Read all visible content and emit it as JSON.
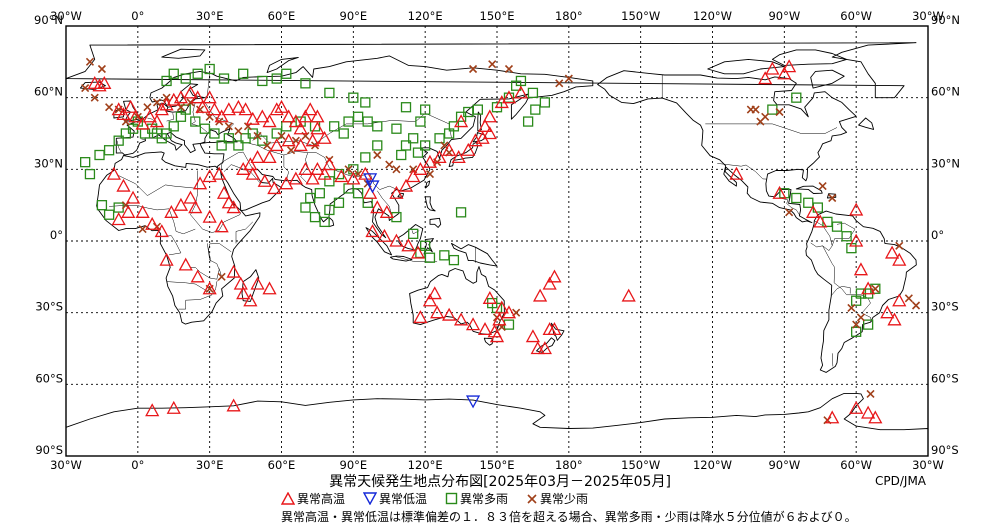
{
  "title": "異常天候発生地点分布図[2025年03月－2025年05月]",
  "credit": "CPD/JMA",
  "note": "異常高温・異常低温は標準偏差の１．８３倍を超える場合、異常多雨・少雨は降水５分位値が６および０。",
  "colors": {
    "high_temp": "#e8171a",
    "low_temp": "#1428d8",
    "heavy_rain": "#2a8a1a",
    "light_rain": "#a0401a"
  },
  "legend": [
    {
      "key": "high_temp",
      "label": "異常高温",
      "symbol": "triangle-up"
    },
    {
      "key": "low_temp",
      "label": "異常低温",
      "symbol": "triangle-down"
    },
    {
      "key": "heavy_rain",
      "label": "異常多雨",
      "symbol": "square"
    },
    {
      "key": "light_rain",
      "label": "異常少雨",
      "symbol": "cross"
    }
  ],
  "axes": {
    "top_labels": [
      "30°W",
      "0°",
      "30°E",
      "60°E",
      "90°E",
      "120°E",
      "150°E",
      "180°",
      "150°W",
      "120°W",
      "90°W",
      "60°W",
      "30°W"
    ],
    "bottom_labels": [
      "30°W",
      "0°",
      "30°E",
      "60°E",
      "90°E",
      "120°E",
      "150°E",
      "180°",
      "150°W",
      "120°W",
      "90°W",
      "60°W",
      "30°W"
    ],
    "left_labels": [
      "90°N",
      "60°N",
      "30°N",
      "0°",
      "30°S",
      "60°S",
      "90°S"
    ],
    "right_labels": [
      "90°N",
      "60°N",
      "30°N",
      "0°",
      "30°S",
      "60°S",
      "90°S"
    ],
    "lon_range_east": [
      -30,
      330
    ],
    "lat_range": [
      -90,
      90
    ]
  },
  "map_data": {
    "high_temp": [
      [
        -18,
        66
      ],
      [
        -16,
        65
      ],
      [
        -14,
        66
      ],
      [
        -8,
        55
      ],
      [
        -6,
        53
      ],
      [
        -3,
        56
      ],
      [
        -1,
        52
      ],
      [
        2,
        49
      ],
      [
        5,
        52
      ],
      [
        8,
        50
      ],
      [
        10,
        55
      ],
      [
        12,
        57
      ],
      [
        15,
        59
      ],
      [
        18,
        60
      ],
      [
        22,
        62
      ],
      [
        25,
        60
      ],
      [
        30,
        60
      ],
      [
        27,
        56
      ],
      [
        32,
        55
      ],
      [
        35,
        52
      ],
      [
        38,
        55
      ],
      [
        42,
        56
      ],
      [
        45,
        55
      ],
      [
        48,
        51
      ],
      [
        52,
        52
      ],
      [
        55,
        50
      ],
      [
        58,
        55
      ],
      [
        60,
        56
      ],
      [
        63,
        52
      ],
      [
        66,
        50
      ],
      [
        68,
        47
      ],
      [
        70,
        52
      ],
      [
        72,
        55
      ],
      [
        75,
        52
      ],
      [
        75,
        47
      ],
      [
        78,
        43
      ],
      [
        73,
        42
      ],
      [
        68,
        40
      ],
      [
        63,
        42
      ],
      [
        58,
        40
      ],
      [
        55,
        35
      ],
      [
        50,
        35
      ],
      [
        47,
        32
      ],
      [
        44,
        30
      ],
      [
        48,
        28
      ],
      [
        53,
        25
      ],
      [
        57,
        22
      ],
      [
        62,
        24
      ],
      [
        66,
        26
      ],
      [
        70,
        30
      ],
      [
        75,
        30
      ],
      [
        80,
        32
      ],
      [
        78,
        28
      ],
      [
        73,
        26
      ],
      [
        85,
        27
      ],
      [
        90,
        26
      ],
      [
        95,
        28
      ],
      [
        97,
        20
      ],
      [
        100,
        14
      ],
      [
        104,
        12
      ],
      [
        108,
        20
      ],
      [
        112,
        23
      ],
      [
        115,
        27
      ],
      [
        118,
        30
      ],
      [
        122,
        33
      ],
      [
        126,
        35
      ],
      [
        130,
        38
      ],
      [
        134,
        35
      ],
      [
        138,
        38
      ],
      [
        141,
        42
      ],
      [
        144,
        43
      ],
      [
        147,
        45
      ],
      [
        147,
        52
      ],
      [
        152,
        58
      ],
      [
        155,
        60
      ],
      [
        160,
        62
      ],
      [
        135,
        50
      ],
      [
        145,
        48
      ],
      [
        -10,
        28
      ],
      [
        -6,
        23
      ],
      [
        -2,
        18
      ],
      [
        -4,
        12
      ],
      [
        -8,
        9
      ],
      [
        2,
        12
      ],
      [
        6,
        7
      ],
      [
        10,
        4
      ],
      [
        14,
        12
      ],
      [
        18,
        15
      ],
      [
        22,
        18
      ],
      [
        26,
        24
      ],
      [
        30,
        27
      ],
      [
        34,
        28
      ],
      [
        36,
        20
      ],
      [
        38,
        16
      ],
      [
        40,
        14
      ],
      [
        24,
        14
      ],
      [
        30,
        10
      ],
      [
        35,
        6
      ],
      [
        12,
        -8
      ],
      [
        20,
        -10
      ],
      [
        25,
        -15
      ],
      [
        30,
        -20
      ],
      [
        40,
        -13
      ],
      [
        43,
        -18
      ],
      [
        44,
        -22
      ],
      [
        47,
        -25
      ],
      [
        50,
        -18
      ],
      [
        55,
        -20
      ],
      [
        98,
        4
      ],
      [
        103,
        2
      ],
      [
        108,
        0
      ],
      [
        113,
        -2
      ],
      [
        117,
        -5
      ],
      [
        124,
        -22
      ],
      [
        122,
        -25
      ],
      [
        125,
        -30
      ],
      [
        118,
        -32
      ],
      [
        130,
        -31
      ],
      [
        135,
        -33
      ],
      [
        140,
        -35
      ],
      [
        145,
        -37
      ],
      [
        149,
        -38
      ],
      [
        151,
        -33
      ],
      [
        147,
        -24
      ],
      [
        152,
        -28
      ],
      [
        155,
        -30
      ],
      [
        150,
        -40
      ],
      [
        165,
        -40
      ],
      [
        167,
        -45
      ],
      [
        170,
        -45
      ],
      [
        172,
        -37
      ],
      [
        174,
        -37
      ],
      [
        168,
        -23
      ],
      [
        172,
        -18
      ],
      [
        174,
        -15
      ],
      [
        205,
        -23
      ],
      [
        6,
        -71
      ],
      [
        15,
        -70
      ],
      [
        40,
        -69
      ],
      [
        300,
        -70
      ],
      [
        305,
        -72
      ],
      [
        308,
        -74
      ],
      [
        290,
        -74
      ],
      [
        262,
        68
      ],
      [
        265,
        72
      ],
      [
        270,
        70
      ],
      [
        272,
        73
      ],
      [
        250,
        28
      ],
      [
        268,
        20
      ],
      [
        282,
        12
      ],
      [
        285,
        8
      ],
      [
        300,
        13
      ],
      [
        315,
        -5
      ],
      [
        318,
        -8
      ],
      [
        300,
        0
      ],
      [
        302,
        -12
      ],
      [
        305,
        -20
      ],
      [
        313,
        -30
      ],
      [
        316,
        -33
      ],
      [
        318,
        -25
      ]
    ],
    "low_temp": [
      [
        97,
        26
      ],
      [
        98,
        23
      ],
      [
        140,
        -67
      ]
    ],
    "heavy_rain": [
      [
        -22,
        33
      ],
      [
        -20,
        28
      ],
      [
        -16,
        36
      ],
      [
        -12,
        38
      ],
      [
        -8,
        42
      ],
      [
        -5,
        45
      ],
      [
        -2,
        47
      ],
      [
        0,
        50
      ],
      [
        3,
        45
      ],
      [
        6,
        47
      ],
      [
        8,
        45
      ],
      [
        10,
        43
      ],
      [
        12,
        45
      ],
      [
        15,
        48
      ],
      [
        18,
        52
      ],
      [
        20,
        55
      ],
      [
        24,
        50
      ],
      [
        28,
        47
      ],
      [
        32,
        45
      ],
      [
        35,
        40
      ],
      [
        38,
        43
      ],
      [
        42,
        40
      ],
      [
        45,
        43
      ],
      [
        48,
        45
      ],
      [
        52,
        42
      ],
      [
        58,
        45
      ],
      [
        62,
        48
      ],
      [
        68,
        50
      ],
      [
        74,
        48
      ],
      [
        82,
        48
      ],
      [
        86,
        45
      ],
      [
        88,
        50
      ],
      [
        92,
        52
      ],
      [
        96,
        50
      ],
      [
        100,
        48
      ],
      [
        108,
        47
      ],
      [
        112,
        40
      ],
      [
        115,
        43
      ],
      [
        120,
        40
      ],
      [
        126,
        43
      ],
      [
        130,
        45
      ],
      [
        132,
        48
      ],
      [
        135,
        52
      ],
      [
        138,
        54
      ],
      [
        142,
        55
      ],
      [
        150,
        56
      ],
      [
        155,
        60
      ],
      [
        158,
        65
      ],
      [
        160,
        67
      ],
      [
        165,
        62
      ],
      [
        170,
        58
      ],
      [
        163,
        50
      ],
      [
        166,
        55
      ],
      [
        12,
        67
      ],
      [
        15,
        70
      ],
      [
        20,
        68
      ],
      [
        25,
        70
      ],
      [
        30,
        72
      ],
      [
        36,
        68
      ],
      [
        44,
        70
      ],
      [
        52,
        67
      ],
      [
        58,
        68
      ],
      [
        62,
        70
      ],
      [
        70,
        66
      ],
      [
        80,
        62
      ],
      [
        90,
        60
      ],
      [
        95,
        58
      ],
      [
        112,
        56
      ],
      [
        120,
        55
      ],
      [
        118,
        50
      ],
      [
        100,
        40
      ],
      [
        95,
        35
      ],
      [
        90,
        30
      ],
      [
        84,
        28
      ],
      [
        80,
        25
      ],
      [
        76,
        20
      ],
      [
        72,
        18
      ],
      [
        70,
        14
      ],
      [
        74,
        10
      ],
      [
        78,
        8
      ],
      [
        80,
        13
      ],
      [
        84,
        16
      ],
      [
        88,
        22
      ],
      [
        92,
        20
      ],
      [
        96,
        16
      ],
      [
        108,
        10
      ],
      [
        115,
        3
      ],
      [
        118,
        -5
      ],
      [
        120,
        -2
      ],
      [
        122,
        -7
      ],
      [
        128,
        -6
      ],
      [
        132,
        -8
      ],
      [
        135,
        12
      ],
      [
        110,
        36
      ],
      [
        117,
        37
      ],
      [
        -15,
        15
      ],
      [
        -12,
        11
      ],
      [
        -8,
        14
      ],
      [
        148,
        -26
      ],
      [
        150,
        -28
      ],
      [
        155,
        -35
      ],
      [
        284,
        14
      ],
      [
        288,
        8
      ],
      [
        292,
        6
      ],
      [
        296,
        2
      ],
      [
        298,
        -3
      ],
      [
        302,
        -22
      ],
      [
        305,
        -22
      ],
      [
        308,
        -20
      ],
      [
        300,
        -25
      ],
      [
        305,
        -35
      ],
      [
        300,
        -38
      ],
      [
        270,
        20
      ],
      [
        275,
        18
      ],
      [
        280,
        16
      ],
      [
        265,
        55
      ],
      [
        275,
        60
      ]
    ],
    "light_rain": [
      [
        -20,
        75
      ],
      [
        -15,
        72
      ],
      [
        -22,
        64
      ],
      [
        -18,
        60
      ],
      [
        -12,
        56
      ],
      [
        -8,
        55
      ],
      [
        -5,
        50
      ],
      [
        0,
        52
      ],
      [
        4,
        56
      ],
      [
        8,
        58
      ],
      [
        12,
        60
      ],
      [
        18,
        56
      ],
      [
        22,
        58
      ],
      [
        26,
        55
      ],
      [
        30,
        52
      ],
      [
        34,
        50
      ],
      [
        38,
        48
      ],
      [
        42,
        46
      ],
      [
        46,
        48
      ],
      [
        50,
        44
      ],
      [
        54,
        40
      ],
      [
        60,
        44
      ],
      [
        64,
        38
      ],
      [
        66,
        42
      ],
      [
        70,
        44
      ],
      [
        74,
        40
      ],
      [
        80,
        34
      ],
      [
        88,
        30
      ],
      [
        92,
        28
      ],
      [
        96,
        24
      ],
      [
        100,
        36
      ],
      [
        105,
        32
      ],
      [
        108,
        30
      ],
      [
        115,
        30
      ],
      [
        122,
        28
      ],
      [
        125,
        33
      ],
      [
        128,
        40
      ],
      [
        130,
        37
      ],
      [
        140,
        72
      ],
      [
        148,
        74
      ],
      [
        155,
        72
      ],
      [
        180,
        68
      ],
      [
        176,
        66
      ],
      [
        -5,
        15
      ],
      [
        2,
        5
      ],
      [
        8,
        6
      ],
      [
        30,
        -20
      ],
      [
        35,
        -15
      ],
      [
        150,
        -32
      ],
      [
        152,
        -36
      ],
      [
        158,
        -30
      ],
      [
        260,
        50
      ],
      [
        256,
        55
      ],
      [
        258,
        55
      ],
      [
        262,
        52
      ],
      [
        268,
        54
      ],
      [
        286,
        23
      ],
      [
        272,
        12
      ],
      [
        290,
        18
      ],
      [
        300,
        -35
      ],
      [
        302,
        -32
      ],
      [
        298,
        -28
      ],
      [
        306,
        -64
      ],
      [
        288,
        -75
      ],
      [
        308,
        -20
      ],
      [
        318,
        -2
      ],
      [
        322,
        -24
      ],
      [
        325,
        -27
      ]
    ]
  }
}
